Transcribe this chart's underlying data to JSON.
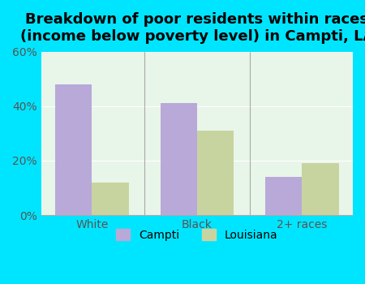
{
  "title": "Breakdown of poor residents within races\n(income below poverty level) in Campti, LA",
  "categories": [
    "White",
    "Black",
    "2+ races"
  ],
  "campti_values": [
    48,
    41,
    14
  ],
  "louisiana_values": [
    12,
    31,
    19
  ],
  "campti_color": "#b8a9d9",
  "louisiana_color": "#c8d4a0",
  "ylim": [
    0,
    60
  ],
  "yticks": [
    0,
    20,
    40,
    60
  ],
  "ytick_labels": [
    "0%",
    "20%",
    "40%",
    "60%"
  ],
  "background_outer": "#00e5ff",
  "background_inner": "#e8f5e9",
  "bar_width": 0.35,
  "legend_campti": "Campti",
  "legend_louisiana": "Louisiana",
  "title_fontsize": 13,
  "tick_fontsize": 10,
  "legend_fontsize": 10
}
